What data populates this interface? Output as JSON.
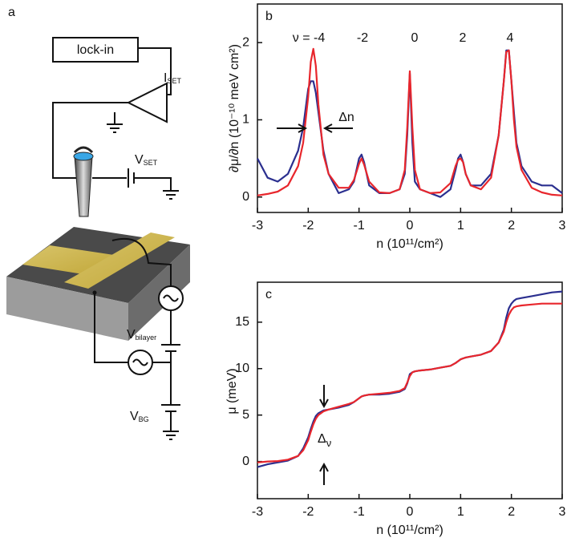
{
  "figure_labels": {
    "a": "a"
  },
  "diagram": {
    "lockin": "lock-in",
    "i_set": {
      "main": "I",
      "sub": "SET"
    },
    "v_set": {
      "main": "V",
      "sub": "SET"
    },
    "v_bilayer": {
      "main": "V",
      "sub": "bilayer"
    },
    "v_bg": {
      "main": "V",
      "sub": "BG"
    }
  },
  "chart_data": [
    {
      "type": "line",
      "panel": "b",
      "x_label": "n (10¹¹/cm²)",
      "y_label": "∂μ/∂n  (10⁻¹⁰ meV cm²)",
      "xlim": [
        -3,
        3
      ],
      "ylim": [
        -0.2,
        2.5
      ],
      "xticks": [
        -3,
        -2,
        -1,
        0,
        1,
        2,
        3
      ],
      "yticks": [
        0,
        1,
        2
      ],
      "annotations": [
        "ν = -4",
        "-2",
        "0",
        "2",
        "4",
        "Δn"
      ],
      "x": [
        -3,
        -2.8,
        -2.6,
        -2.4,
        -2.2,
        -2.1,
        -2.0,
        -1.95,
        -1.9,
        -1.85,
        -1.8,
        -1.7,
        -1.6,
        -1.4,
        -1.2,
        -1.1,
        -1.0,
        -0.95,
        -0.9,
        -0.8,
        -0.6,
        -0.4,
        -0.2,
        -0.1,
        -0.05,
        0,
        0.05,
        0.1,
        0.2,
        0.4,
        0.6,
        0.8,
        0.9,
        0.95,
        1.0,
        1.05,
        1.1,
        1.2,
        1.4,
        1.6,
        1.75,
        1.85,
        1.9,
        1.95,
        2.0,
        2.05,
        2.1,
        2.2,
        2.4,
        2.6,
        2.8,
        3.0
      ],
      "series": [
        {
          "color": "#2b2f8f",
          "values": [
            0.5,
            0.25,
            0.2,
            0.3,
            0.6,
            0.9,
            1.4,
            1.5,
            1.5,
            1.35,
            1.1,
            0.6,
            0.3,
            0.05,
            0.1,
            0.2,
            0.5,
            0.55,
            0.45,
            0.15,
            0.05,
            0.05,
            0.1,
            0.3,
            0.8,
            1.6,
            0.7,
            0.2,
            0.1,
            0.05,
            0.0,
            0.1,
            0.35,
            0.5,
            0.55,
            0.45,
            0.3,
            0.15,
            0.15,
            0.3,
            0.8,
            1.5,
            1.9,
            1.9,
            1.5,
            1.1,
            0.7,
            0.4,
            0.2,
            0.15,
            0.15,
            0.05
          ]
        },
        {
          "color": "#e8262c",
          "values": [
            0.02,
            0.04,
            0.07,
            0.15,
            0.4,
            0.7,
            1.3,
            1.75,
            1.92,
            1.7,
            1.2,
            0.55,
            0.3,
            0.12,
            0.12,
            0.22,
            0.43,
            0.5,
            0.42,
            0.2,
            0.06,
            0.05,
            0.1,
            0.35,
            0.9,
            1.63,
            0.9,
            0.35,
            0.1,
            0.05,
            0.06,
            0.18,
            0.4,
            0.48,
            0.5,
            0.45,
            0.3,
            0.15,
            0.1,
            0.25,
            0.8,
            1.5,
            1.88,
            1.9,
            1.5,
            1.0,
            0.65,
            0.35,
            0.12,
            0.06,
            0.03,
            0.02
          ]
        }
      ]
    },
    {
      "type": "line",
      "panel": "c",
      "x_label": "n (10¹¹/cm²)",
      "y_label": "μ (meV)",
      "xlim": [
        -3,
        3
      ],
      "ylim": [
        -4,
        19.3
      ],
      "xticks": [
        -3,
        -2,
        -1,
        0,
        1,
        2,
        3
      ],
      "yticks": [
        0,
        5,
        10,
        15
      ],
      "annotations": [
        {
          "text": "Δ",
          "subscript": "ν"
        }
      ],
      "x": [
        -3,
        -2.8,
        -2.6,
        -2.4,
        -2.2,
        -2.1,
        -2.0,
        -1.95,
        -1.9,
        -1.85,
        -1.8,
        -1.7,
        -1.6,
        -1.4,
        -1.2,
        -1.1,
        -1.0,
        -0.95,
        -0.9,
        -0.8,
        -0.6,
        -0.4,
        -0.2,
        -0.1,
        -0.05,
        0,
        0.05,
        0.1,
        0.2,
        0.4,
        0.6,
        0.8,
        0.9,
        0.95,
        1.0,
        1.05,
        1.1,
        1.2,
        1.4,
        1.6,
        1.75,
        1.85,
        1.9,
        1.95,
        2.0,
        2.05,
        2.1,
        2.2,
        2.4,
        2.6,
        2.8,
        3.0
      ],
      "series": [
        {
          "color": "#2b2f8f",
          "values": [
            -0.6,
            -0.3,
            -0.1,
            0.1,
            0.6,
            1.4,
            2.6,
            3.5,
            4.3,
            4.9,
            5.2,
            5.5,
            5.6,
            5.8,
            6.1,
            6.4,
            6.8,
            7.0,
            7.1,
            7.2,
            7.2,
            7.3,
            7.5,
            7.8,
            8.4,
            9.4,
            9.6,
            9.7,
            9.8,
            9.9,
            10.1,
            10.3,
            10.6,
            10.8,
            11.0,
            11.1,
            11.2,
            11.3,
            11.5,
            11.9,
            12.8,
            14.2,
            15.5,
            16.5,
            17.0,
            17.3,
            17.5,
            17.6,
            17.8,
            18.0,
            18.2,
            18.3
          ]
        },
        {
          "color": "#e8262c",
          "values": [
            -0.1,
            0,
            0.05,
            0.2,
            0.6,
            1.2,
            2.3,
            3.2,
            4.0,
            4.6,
            5.0,
            5.4,
            5.6,
            5.9,
            6.2,
            6.4,
            6.8,
            7.0,
            7.1,
            7.2,
            7.3,
            7.4,
            7.6,
            7.9,
            8.5,
            9.2,
            9.6,
            9.7,
            9.8,
            9.9,
            10.1,
            10.3,
            10.6,
            10.8,
            11.0,
            11.1,
            11.2,
            11.3,
            11.5,
            11.9,
            12.8,
            14.0,
            15.0,
            15.8,
            16.3,
            16.6,
            16.7,
            16.8,
            16.9,
            17.0,
            17.0,
            17.0
          ]
        }
      ]
    }
  ]
}
